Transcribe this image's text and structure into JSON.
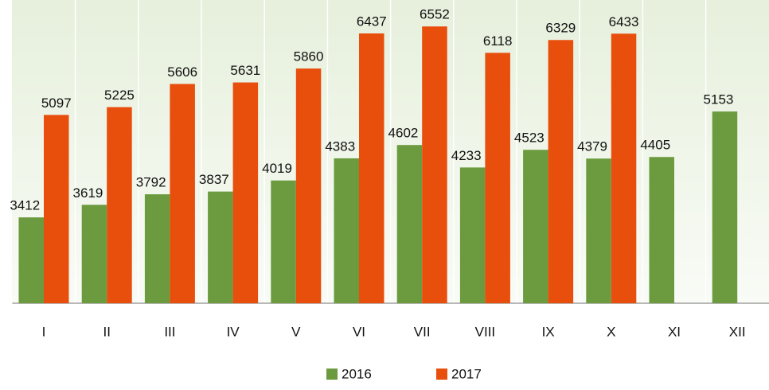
{
  "chart_data": {
    "type": "bar",
    "categories": [
      "I",
      "II",
      "III",
      "IV",
      "V",
      "VI",
      "VII",
      "VIII",
      "IX",
      "X",
      "XI",
      "XII"
    ],
    "series": [
      {
        "name": "2016",
        "color": "#6b9b3e",
        "values": [
          3412,
          3619,
          3792,
          3837,
          4019,
          4383,
          4602,
          4233,
          4523,
          4379,
          4405,
          5153
        ]
      },
      {
        "name": "2017",
        "color": "#e84e0c",
        "values": [
          5097,
          5225,
          5606,
          5631,
          5860,
          6437,
          6552,
          6118,
          6329,
          6433,
          null,
          null
        ]
      }
    ],
    "ylim": [
      2000,
      7000
    ],
    "legend": "bottom"
  }
}
